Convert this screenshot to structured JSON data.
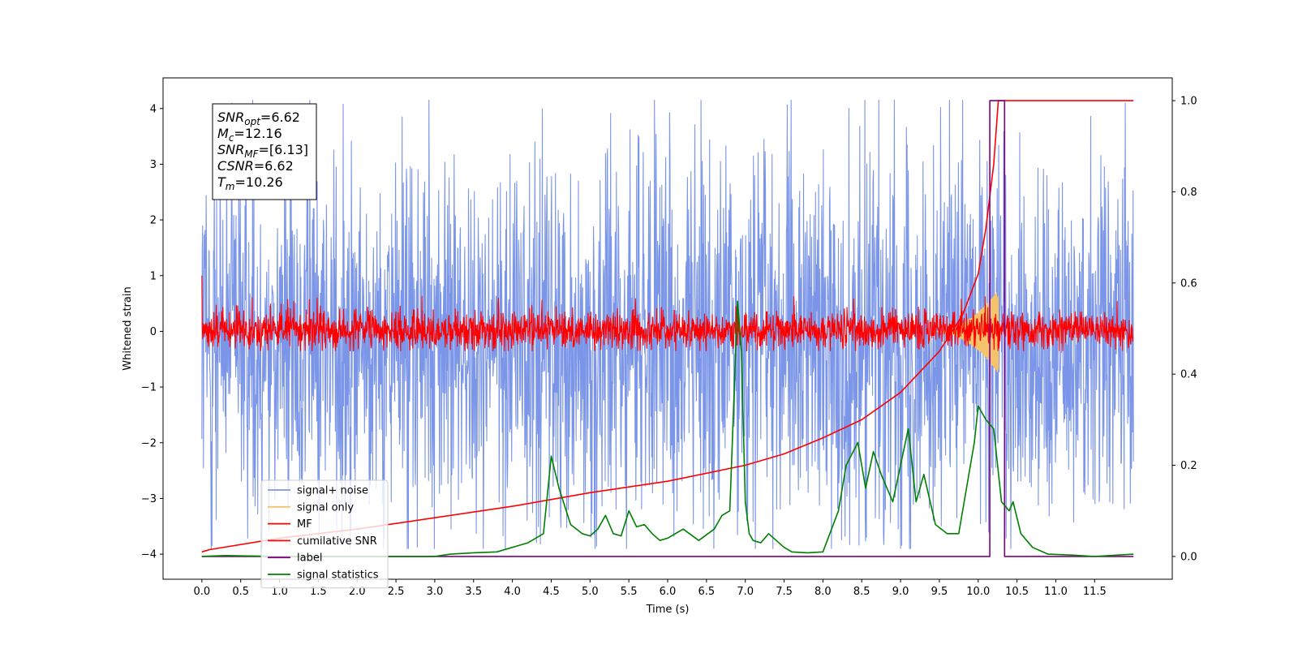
{
  "chart_data": {
    "type": "line",
    "xlabel": "Time (s)",
    "ylabel": "Whitened strain",
    "ylabel_right": "",
    "xlim": [
      -0.5,
      12.5
    ],
    "ylim": [
      -4.45,
      4.55
    ],
    "ylim_right": [
      -0.05,
      1.05
    ],
    "x_ticks": [
      "0.0",
      "0.5",
      "1.0",
      "1.5",
      "2.0",
      "2.5",
      "3.0",
      "3.5",
      "4.0",
      "4.5",
      "5.0",
      "5.5",
      "6.0",
      "6.5",
      "7.0",
      "7.5",
      "8.0",
      "8.5",
      "9.0",
      "9.5",
      "10.0",
      "10.5",
      "11.0",
      "11.5"
    ],
    "y_ticks": [
      "4",
      "3",
      "2",
      "1",
      "0",
      "−1",
      "−2",
      "−3",
      "−4"
    ],
    "y_ticks_right": [
      "1.0",
      "0.8",
      "0.6",
      "0.4",
      "0.2",
      "0.0"
    ],
    "grid": false,
    "legend_position": "lower-left",
    "annotation": {
      "lines": [
        {
          "sym": "SNR",
          "sub": "opt",
          "value": "=6.62"
        },
        {
          "sym": "M",
          "sub": "c",
          "value": "=12.16"
        },
        {
          "sym": "SNR",
          "sub": "MF",
          "value": "=[6.13]"
        },
        {
          "sym": "CSNR",
          "sub": "",
          "value": "=6.62"
        },
        {
          "sym": "T",
          "sub": "m",
          "value": "=10.26"
        }
      ]
    },
    "series": [
      {
        "name": "signal+ noise",
        "color": "#7b96e8",
        "axis": "left",
        "kind": "noise",
        "x_range": [
          0.0,
          12.0
        ],
        "band": [
          -2.9,
          2.6
        ],
        "peak_min": -3.9,
        "peak_max": 4.15
      },
      {
        "name": "signal only",
        "color": "#f5c36b",
        "axis": "left",
        "kind": "chirp",
        "x_range": [
          9.4,
          10.26
        ],
        "peak_amplitude": 0.75
      },
      {
        "name": "MF",
        "color": "#ff0000",
        "axis": "left",
        "kind": "noise",
        "x_range": [
          0.0,
          12.0
        ],
        "band": [
          -0.25,
          0.3
        ],
        "peak_min": -0.35,
        "peak_max": 0.65,
        "start_value": 1.0
      },
      {
        "name": "cumilative SNR",
        "color": "#ff0000",
        "axis": "right",
        "x": [
          0.0,
          0.1,
          1.0,
          2.0,
          3.0,
          4.0,
          5.0,
          6.0,
          7.0,
          7.5,
          8.0,
          8.5,
          9.0,
          9.5,
          9.8,
          10.0,
          10.1,
          10.2,
          10.26,
          12.0
        ],
        "y": [
          0.01,
          0.015,
          0.04,
          0.06,
          0.085,
          0.11,
          0.14,
          0.165,
          0.2,
          0.225,
          0.26,
          0.3,
          0.36,
          0.45,
          0.53,
          0.62,
          0.72,
          0.86,
          1.0,
          1.0
        ]
      },
      {
        "name": "label",
        "color": "#800080",
        "axis": "right",
        "x": [
          0.0,
          10.15,
          10.15,
          10.34,
          10.34,
          12.0
        ],
        "y": [
          0.0,
          0.0,
          1.0,
          1.0,
          0.0,
          0.0
        ]
      },
      {
        "name": "signal statistics",
        "color": "#008000",
        "axis": "right",
        "x": [
          0.0,
          0.3,
          1.0,
          2.0,
          3.0,
          3.2,
          3.5,
          3.8,
          4.0,
          4.2,
          4.4,
          4.5,
          4.6,
          4.75,
          4.9,
          5.0,
          5.1,
          5.2,
          5.3,
          5.4,
          5.5,
          5.6,
          5.7,
          5.8,
          5.9,
          6.0,
          6.2,
          6.4,
          6.6,
          6.7,
          6.8,
          6.9,
          6.95,
          7.0,
          7.05,
          7.1,
          7.2,
          7.3,
          7.5,
          7.6,
          7.8,
          8.0,
          8.2,
          8.3,
          8.45,
          8.55,
          8.65,
          8.75,
          8.9,
          9.1,
          9.2,
          9.3,
          9.45,
          9.6,
          9.75,
          9.85,
          9.95,
          10.0,
          10.1,
          10.2,
          10.3,
          10.4,
          10.45,
          10.55,
          10.7,
          10.9,
          11.2,
          11.5,
          12.0
        ],
        "y": [
          0.0,
          0.002,
          0.0,
          0.0,
          0.0,
          0.005,
          0.008,
          0.01,
          0.02,
          0.03,
          0.05,
          0.22,
          0.15,
          0.07,
          0.05,
          0.045,
          0.06,
          0.09,
          0.05,
          0.045,
          0.1,
          0.065,
          0.07,
          0.05,
          0.035,
          0.04,
          0.06,
          0.035,
          0.06,
          0.09,
          0.1,
          0.56,
          0.45,
          0.12,
          0.05,
          0.035,
          0.03,
          0.05,
          0.02,
          0.01,
          0.008,
          0.01,
          0.1,
          0.2,
          0.25,
          0.15,
          0.23,
          0.18,
          0.12,
          0.28,
          0.12,
          0.18,
          0.07,
          0.05,
          0.05,
          0.15,
          0.25,
          0.33,
          0.3,
          0.28,
          0.12,
          0.1,
          0.12,
          0.05,
          0.02,
          0.005,
          0.003,
          0.0,
          0.005
        ]
      }
    ]
  }
}
